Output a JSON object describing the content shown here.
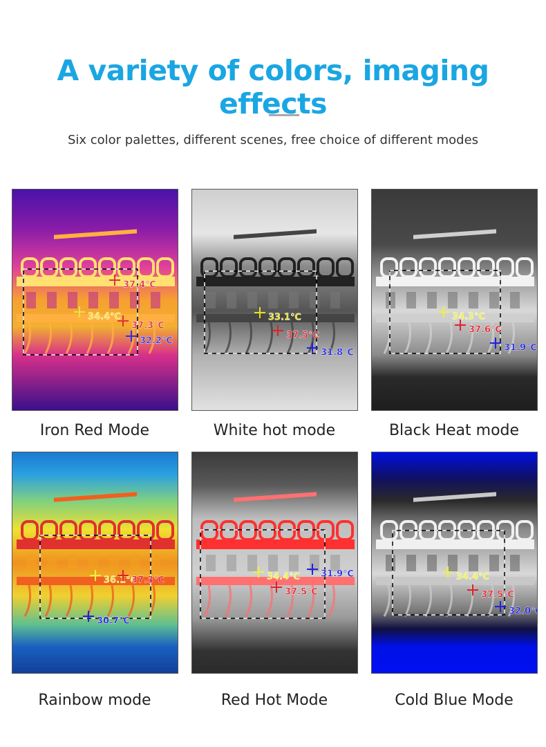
{
  "header": {
    "title": "A variety of colors, imaging effects",
    "subtitle": "Six color palettes, different scenes, free choice of different modes"
  },
  "panels": [
    {
      "label": "Iron Red Mode",
      "readings": [
        "37.4℃",
        "34.4℃",
        "37.3℃",
        "32.2℃"
      ]
    },
    {
      "label": "White hot mode",
      "readings": [
        "33.1℃",
        "37.5℃",
        "31.8℃"
      ]
    },
    {
      "label": "Black Heat mode",
      "readings": [
        "34.3℃",
        "37.6℃",
        "31.9℃"
      ]
    },
    {
      "label": "Rainbow mode",
      "readings": [
        "36.1℃",
        "37.3℃",
        "30.7℃"
      ]
    },
    {
      "label": "Red Hot Mode",
      "readings": [
        "34.4℃",
        "37.5℃",
        "31.9℃"
      ]
    },
    {
      "label": "Cold Blue Mode",
      "readings": [
        "34.4℃",
        "37.5℃",
        "32.0℃"
      ]
    }
  ]
}
